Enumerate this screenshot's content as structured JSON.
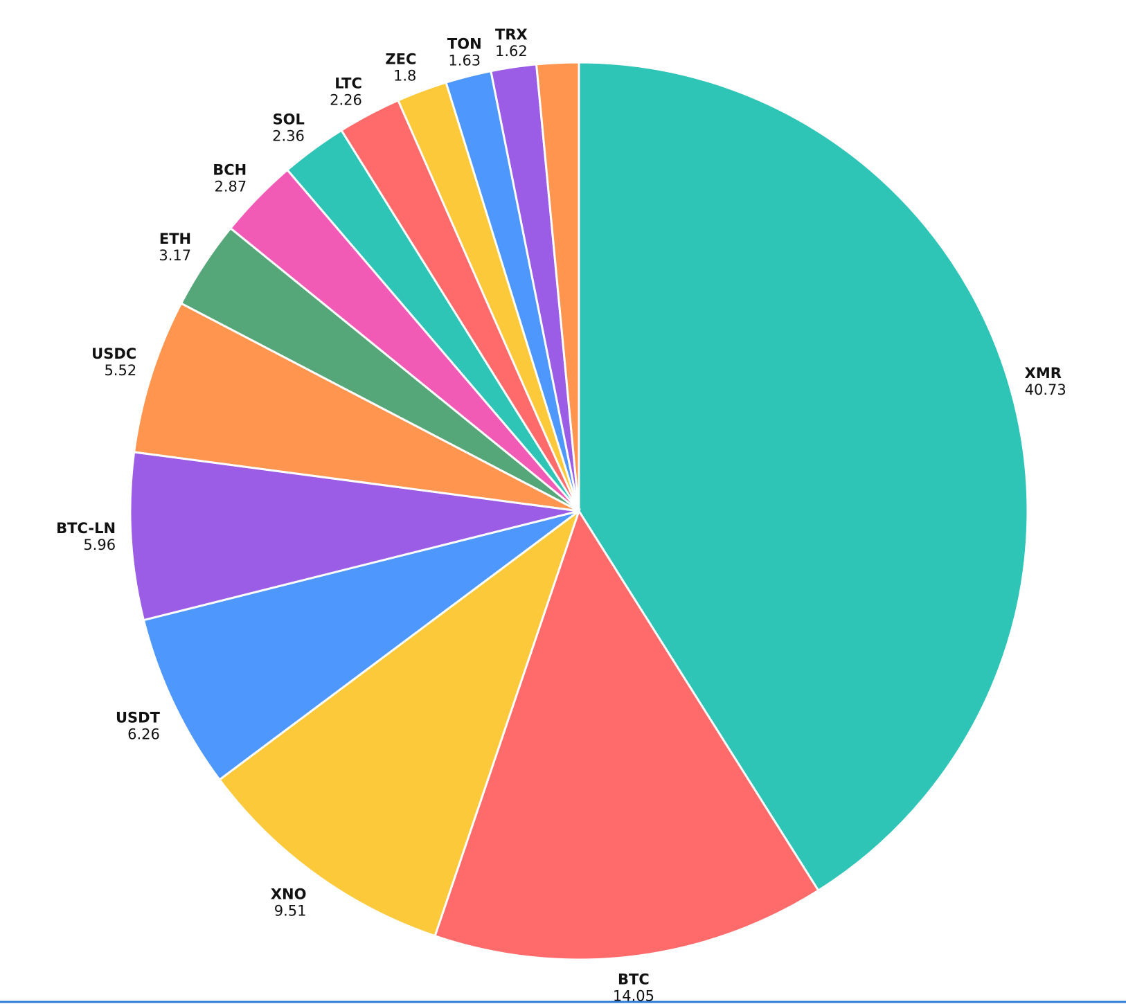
{
  "chart_data": {
    "type": "pie",
    "categories": [
      "XMR",
      "BTC",
      "XNO",
      "USDT",
      "BTC-LN",
      "USDC",
      "ETH",
      "BCH",
      "SOL",
      "LTC",
      "ZEC",
      "TON",
      "TRX",
      null
    ],
    "values": [
      40.73,
      14.05,
      9.51,
      6.26,
      5.96,
      5.52,
      3.17,
      2.87,
      2.36,
      2.26,
      1.8,
      1.63,
      1.62,
      1.5
    ],
    "colors": [
      "#2ec4b6",
      "#ff6b6b",
      "#fcc93b",
      "#4e97fd",
      "#9b5de5",
      "#ff954f",
      "#55a77a",
      "#f15bb5",
      "#2ec4b6",
      "#ff6b6b",
      "#fcc93b",
      "#4e97fd",
      "#9b5de5",
      "#ff954f"
    ]
  }
}
